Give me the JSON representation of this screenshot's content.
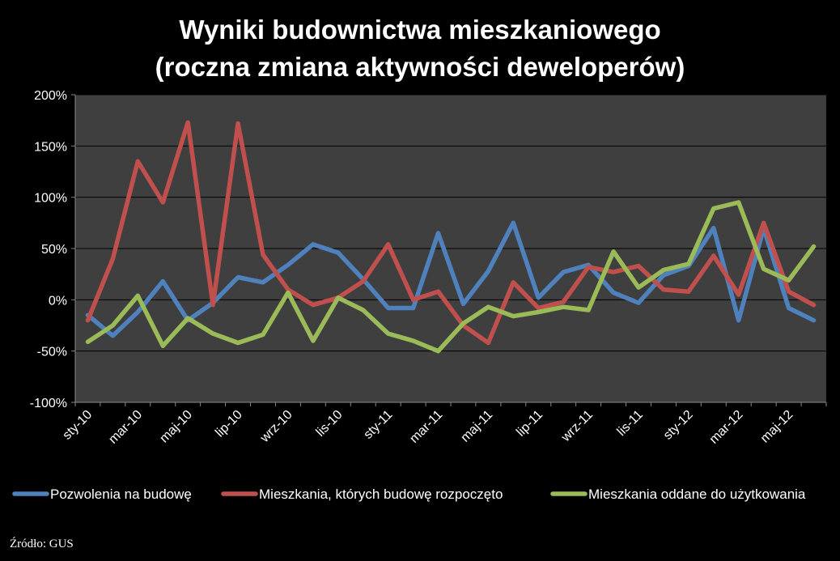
{
  "chart_data": {
    "type": "line",
    "title": [
      "Wyniki budownictwa mieszkaniowego",
      "(roczna zmiana aktywności deweloperów)"
    ],
    "ylim": [
      -100,
      200
    ],
    "yticks": [
      200,
      150,
      100,
      50,
      0,
      -50,
      -100
    ],
    "ytick_labels": [
      "200%",
      "150%",
      "100%",
      "50%",
      "0%",
      "-50%",
      "-100%"
    ],
    "x": [
      "sty-10",
      "lut-10",
      "mar-10",
      "kwi-10",
      "maj-10",
      "cze-10",
      "lip-10",
      "sie-10",
      "wrz-10",
      "paź-10",
      "lis-10",
      "gru-10",
      "sty-11",
      "lut-11",
      "mar-11",
      "kwi-11",
      "maj-11",
      "cze-11",
      "lip-11",
      "sie-11",
      "wrz-11",
      "paź-11",
      "lis-11",
      "gru-11",
      "sty-12",
      "lut-12",
      "mar-12",
      "kwi-12",
      "maj-12",
      "cze-12"
    ],
    "xtick_labels": [
      "sty-10",
      "mar-10",
      "maj-10",
      "lip-10",
      "wrz-10",
      "lis-10",
      "sty-11",
      "mar-11",
      "maj-11",
      "lip-11",
      "wrz-11",
      "lis-11",
      "sty-12",
      "mar-12",
      "maj-12"
    ],
    "grid": true,
    "legend_position": "bottom",
    "plot_background": "#3f3f3f",
    "series": [
      {
        "name": "Pozwolenia na budowę",
        "color": "#4f81bd",
        "values": [
          -15,
          -35,
          -12,
          18,
          -20,
          -3,
          22,
          17,
          34,
          54,
          46,
          20,
          -8,
          -8,
          65,
          -4,
          28,
          75,
          2,
          27,
          34,
          7,
          -3,
          24,
          33,
          70,
          -20,
          70,
          -8,
          -20
        ]
      },
      {
        "name": "Mieszkania, których budowę rozpoczęto",
        "color": "#c0504d",
        "values": [
          -20,
          40,
          135,
          95,
          173,
          -5,
          172,
          44,
          10,
          -5,
          2,
          18,
          54,
          0,
          8,
          -25,
          -42,
          17,
          -8,
          -2,
          32,
          27,
          33,
          10,
          8,
          43,
          5,
          75,
          8,
          -5
        ]
      },
      {
        "name": "Mieszkania oddane do użytkowania",
        "color": "#9bbb59",
        "values": [
          -41,
          -25,
          4,
          -45,
          -18,
          -33,
          -42,
          -34,
          7,
          -40,
          2,
          -10,
          -33,
          -40,
          -50,
          -23,
          -7,
          -16,
          -12,
          -7,
          -10,
          47,
          12,
          29,
          35,
          89,
          95,
          30,
          19,
          52
        ]
      }
    ]
  },
  "source": "Źródło: GUS"
}
